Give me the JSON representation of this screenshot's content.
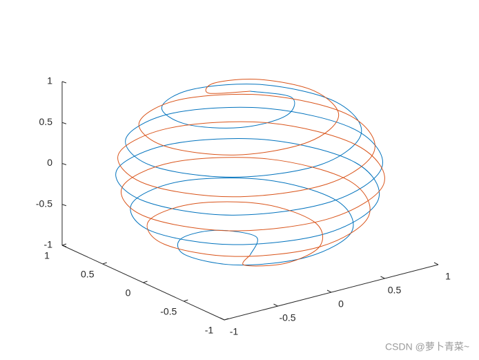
{
  "chart_data": {
    "type": "line3d",
    "series": [
      {
        "color": "#0072BD",
        "x": [
          0,
          0.22,
          0,
          -0.37,
          -0.6,
          -0.47,
          0,
          0.54,
          0.8,
          0.59,
          0,
          -0.63,
          -0.92,
          -0.66,
          0,
          0.68,
          0.98,
          0.7,
          0,
          -0.71,
          -1,
          -0.71,
          0,
          0.7,
          0.98,
          0.68,
          0,
          -0.66,
          -0.92,
          -0.63,
          0,
          0.59,
          0.8,
          0.54,
          0,
          -0.47,
          -0.6,
          -0.37,
          0,
          0.22,
          0
        ],
        "y": [
          0,
          0.22,
          0.44,
          0.37,
          0,
          -0.47,
          -0.71,
          -0.54,
          0,
          0.59,
          0.87,
          0.63,
          0,
          -0.66,
          -0.95,
          -0.68,
          0,
          0.7,
          0.99,
          0.71,
          0,
          -0.71,
          -0.99,
          -0.7,
          0,
          0.68,
          0.95,
          0.66,
          0,
          -0.63,
          -0.87,
          -0.59,
          0,
          0.54,
          0.71,
          0.47,
          0,
          -0.37,
          -0.44,
          -0.22,
          0
        ],
        "z": [
          -1,
          -0.95,
          -0.9,
          -0.85,
          -0.8,
          -0.75,
          -0.7,
          -0.65,
          -0.6,
          -0.55,
          -0.5,
          -0.45,
          -0.4,
          -0.35,
          -0.3,
          -0.25,
          -0.2,
          -0.15,
          -0.1,
          -0.05,
          0,
          0.05,
          0.1,
          0.15,
          0.2,
          0.25,
          0.3,
          0.35,
          0.4,
          0.45,
          0.5,
          0.55,
          0.6,
          0.65,
          0.7,
          0.75,
          0.8,
          0.85,
          0.9,
          0.95,
          1
        ]
      },
      {
        "color": "#D95319",
        "x": [
          0,
          -0.22,
          0,
          0.37,
          0.6,
          0.47,
          0,
          -0.54,
          -0.8,
          -0.59,
          0,
          0.63,
          0.92,
          0.66,
          0,
          -0.68,
          -0.98,
          -0.7,
          0,
          0.71,
          1,
          0.71,
          0,
          -0.7,
          -0.98,
          -0.68,
          0,
          0.66,
          0.92,
          0.63,
          0,
          -0.59,
          -0.8,
          -0.54,
          0,
          0.47,
          0.6,
          0.37,
          0,
          -0.22,
          0
        ],
        "y": [
          0,
          -0.22,
          -0.44,
          -0.37,
          0,
          0.47,
          0.71,
          0.54,
          0,
          -0.59,
          -0.87,
          -0.63,
          0,
          0.66,
          0.95,
          0.68,
          0,
          -0.7,
          -0.99,
          -0.71,
          0,
          0.71,
          0.99,
          0.7,
          0,
          -0.68,
          -0.95,
          -0.66,
          0,
          0.63,
          0.87,
          0.59,
          0,
          -0.54,
          -0.71,
          -0.47,
          0,
          0.37,
          0.44,
          0.22,
          0
        ],
        "z": [
          -1,
          -0.95,
          -0.9,
          -0.85,
          -0.8,
          -0.75,
          -0.7,
          -0.65,
          -0.6,
          -0.55,
          -0.5,
          -0.45,
          -0.4,
          -0.35,
          -0.3,
          -0.25,
          -0.2,
          -0.15,
          -0.1,
          -0.05,
          0,
          0.05,
          0.1,
          0.15,
          0.2,
          0.25,
          0.3,
          0.35,
          0.4,
          0.45,
          0.5,
          0.55,
          0.6,
          0.65,
          0.7,
          0.75,
          0.8,
          0.85,
          0.9,
          0.95,
          1
        ]
      }
    ],
    "xlim": [
      -1,
      1
    ],
    "ylim": [
      -1,
      1
    ],
    "zlim": [
      -1,
      1
    ],
    "xticks": [
      -1,
      -0.5,
      0,
      0.5,
      1
    ],
    "yticks": [
      -1,
      -0.5,
      0,
      0.5,
      1
    ],
    "zticks": [
      -1,
      -0.5,
      0,
      0.5,
      1
    ],
    "watermark": "CSDN @萝卜青菜~"
  }
}
